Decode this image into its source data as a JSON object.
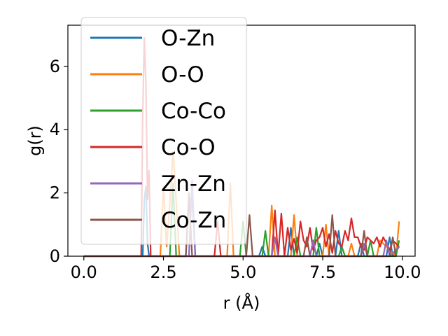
{
  "chart_data": {
    "type": "line",
    "xlabel": "r (Å)",
    "ylabel": "g(r)",
    "xlim": [
      -0.5,
      10.4
    ],
    "ylim": [
      0,
      7.3
    ],
    "x_ticks": [
      {
        "value": 0.0,
        "label": "0.0"
      },
      {
        "value": 2.5,
        "label": "2.5"
      },
      {
        "value": 5.0,
        "label": "5.0"
      },
      {
        "value": 7.5,
        "label": "7.5"
      },
      {
        "value": 10.0,
        "label": "10.0"
      }
    ],
    "y_ticks": [
      {
        "value": 0,
        "label": "0"
      },
      {
        "value": 2,
        "label": "2"
      },
      {
        "value": 4,
        "label": "4"
      },
      {
        "value": 6,
        "label": "6"
      }
    ],
    "legend_position": "upper-left",
    "series": [
      {
        "name": "O-Zn",
        "color": "#1f77b4",
        "x": [
          0.0,
          1.85,
          1.9,
          1.95,
          2.0,
          2.05,
          3.2,
          3.3,
          3.4,
          3.5,
          5.5,
          5.6,
          5.7,
          6.4,
          6.5,
          6.6,
          7.3,
          7.4,
          7.5,
          7.9,
          8.0,
          8.1,
          8.6,
          8.7,
          8.8,
          9.5,
          9.6,
          9.7,
          9.9
        ],
        "y": [
          0,
          0,
          1.8,
          2.2,
          0.4,
          0,
          0,
          1.7,
          1.9,
          0,
          0,
          0.3,
          0,
          0,
          0.9,
          0,
          0,
          0.4,
          0,
          0,
          0.8,
          0,
          0,
          0.4,
          0,
          0,
          0.6,
          0,
          0.3
        ]
      },
      {
        "name": "O-O",
        "color": "#ff7f0e",
        "x": [
          0.0,
          2.4,
          2.5,
          2.6,
          2.75,
          2.8,
          2.85,
          3.0,
          4.5,
          4.6,
          4.7,
          5.8,
          5.9,
          6.0,
          6.5,
          6.6,
          6.7,
          7.5,
          7.6,
          7.7,
          8.3,
          8.4,
          8.5,
          9.2,
          9.3,
          9.8,
          9.9
        ],
        "y": [
          0,
          0,
          2.2,
          0.3,
          2.4,
          3.3,
          2.6,
          0,
          0,
          2.3,
          0,
          0,
          1.6,
          0,
          0,
          1.3,
          0,
          0,
          1.0,
          0,
          0,
          0.4,
          0,
          0,
          0.5,
          0,
          1.1
        ]
      },
      {
        "name": "Co-Co",
        "color": "#2ca02c",
        "x": [
          0.0,
          2.7,
          2.8,
          2.9,
          4.9,
          5.0,
          5.1,
          5.6,
          5.7,
          5.8,
          6.6,
          6.7,
          6.8,
          7.2,
          7.3,
          7.4,
          8.0,
          8.1,
          8.2,
          8.9,
          9.0,
          9.1,
          9.8,
          9.9
        ],
        "y": [
          0,
          0,
          2.3,
          0,
          0,
          1.1,
          0,
          0,
          0.8,
          0,
          0,
          0.6,
          0,
          0,
          0.9,
          0,
          0,
          0.3,
          0,
          0,
          0.5,
          0,
          0,
          0.5
        ]
      },
      {
        "name": "Co-O",
        "color": "#d62728",
        "x": [
          0.0,
          1.8,
          1.85,
          1.9,
          1.95,
          2.0,
          2.05,
          2.1,
          4.1,
          4.2,
          4.3,
          5.9,
          6.0,
          6.1,
          6.2,
          6.3,
          6.4,
          6.5,
          6.6,
          6.7,
          6.8,
          6.9,
          7.0,
          7.1,
          7.2,
          7.3,
          7.4,
          7.5,
          7.6,
          7.7,
          7.8,
          7.9,
          8.0,
          8.1,
          8.2,
          8.3,
          8.4,
          8.5,
          8.6,
          8.7,
          8.8,
          8.9,
          9.0,
          9.1,
          9.2,
          9.3,
          9.4,
          9.5,
          9.6,
          9.7,
          9.8,
          9.9
        ],
        "y": [
          0,
          0,
          4.5,
          6.9,
          5.4,
          1.8,
          2.7,
          0,
          0,
          1.1,
          0,
          0,
          1.45,
          0,
          1.35,
          0,
          0.9,
          0.2,
          0.55,
          0.1,
          1.1,
          0.5,
          0.3,
          0.9,
          0.2,
          0.5,
          0.6,
          0.9,
          0.3,
          0.7,
          0.1,
          0.8,
          0.4,
          0.3,
          0.8,
          0.5,
          1.2,
          0.6,
          0.6,
          0.3,
          0.2,
          0.6,
          0.5,
          0.4,
          0.6,
          0.3,
          0.6,
          0.4,
          0.2,
          0.5,
          0.4,
          0.3
        ]
      },
      {
        "name": "Zn-Zn",
        "color": "#9467bd",
        "x": [
          0.0,
          3.3,
          3.4,
          3.5,
          5.9,
          6.0,
          6.1,
          7.1,
          7.2,
          7.3,
          8.7,
          8.8,
          8.9,
          9.4,
          9.5,
          9.6,
          9.9
        ],
        "y": [
          0,
          0,
          2.4,
          0,
          0,
          0.6,
          0,
          0,
          0.5,
          0,
          0,
          0.4,
          0,
          0,
          0.5,
          0,
          0.3
        ]
      },
      {
        "name": "Co-Zn",
        "color": "#8c564b",
        "x": [
          0.0,
          3.2,
          3.3,
          3.4,
          5.1,
          5.2,
          5.3,
          6.9,
          7.0,
          7.1,
          7.7,
          7.8,
          7.9,
          8.7,
          8.8,
          8.9,
          9.6,
          9.7,
          9.8
        ],
        "y": [
          0,
          0,
          2.0,
          0,
          0,
          1.3,
          0,
          0,
          0.6,
          0,
          0,
          1.3,
          0,
          0,
          0.8,
          0,
          0,
          0.6,
          0
        ]
      }
    ]
  }
}
